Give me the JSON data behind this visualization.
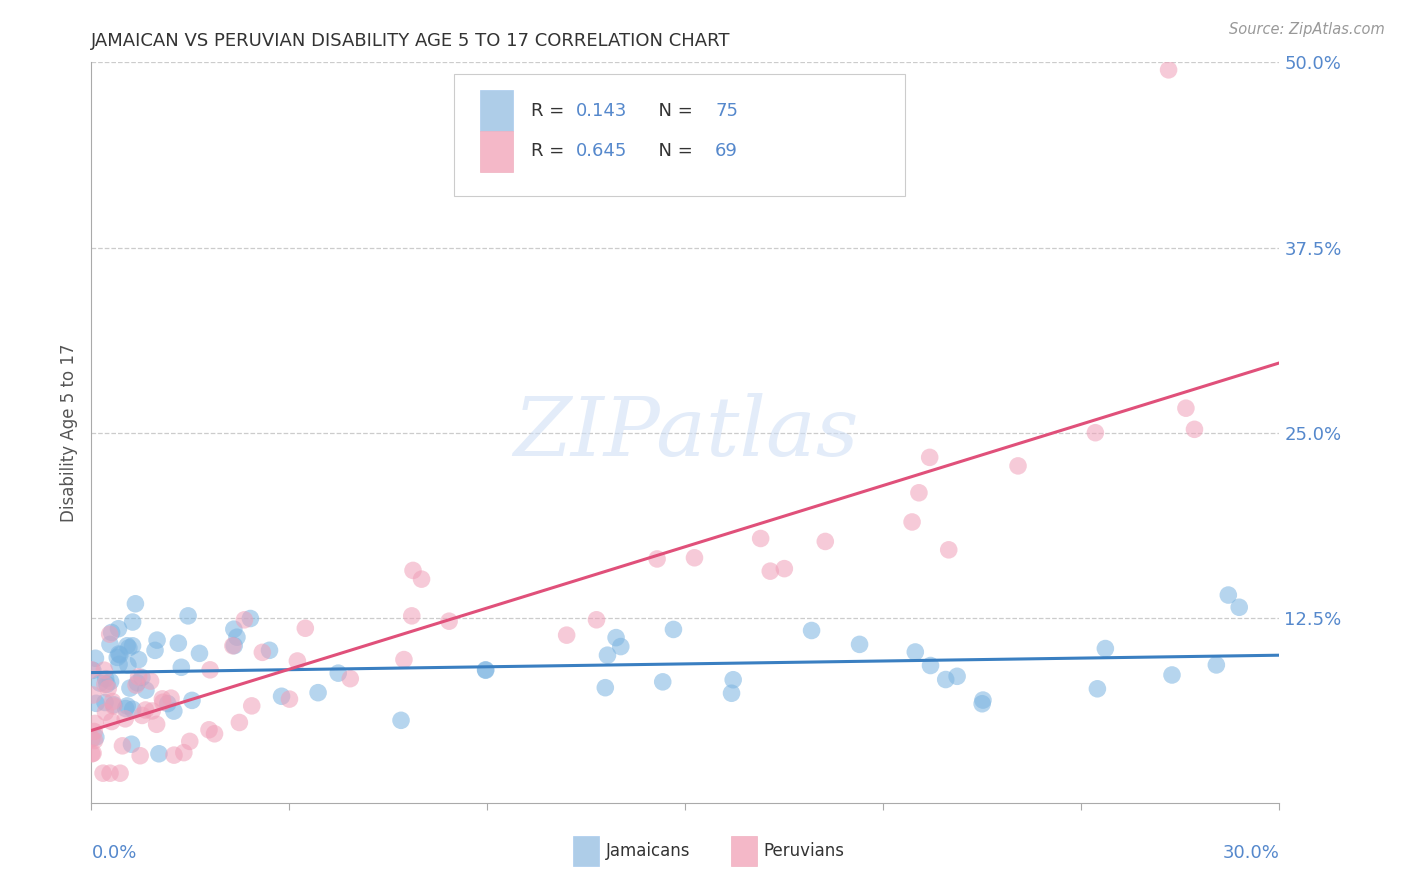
{
  "title": "JAMAICAN VS PERUVIAN DISABILITY AGE 5 TO 17 CORRELATION CHART",
  "source": "Source: ZipAtlas.com",
  "ylabel": "Disability Age 5 to 17",
  "right_yticks": [
    0.0,
    0.125,
    0.25,
    0.375,
    0.5
  ],
  "right_yticklabels": [
    "",
    "12.5%",
    "25.0%",
    "37.5%",
    "50.0%"
  ],
  "xlim": [
    0.0,
    0.3
  ],
  "ylim": [
    0.0,
    0.5
  ],
  "watermark": "ZIPatlas",
  "blue_color": "#7ab3e0",
  "pink_color": "#f0a0b8",
  "blue_line_color": "#3a7fc1",
  "pink_line_color": "#e0507a",
  "title_color": "#333333",
  "axis_color": "#5588cc",
  "R_jamaican": 0.143,
  "N_jamaican": 75,
  "R_peruvian": 0.645,
  "N_peruvian": 69,
  "blue_intercept": 0.092,
  "blue_slope": 0.022,
  "pink_intercept": 0.055,
  "pink_slope": 0.72
}
